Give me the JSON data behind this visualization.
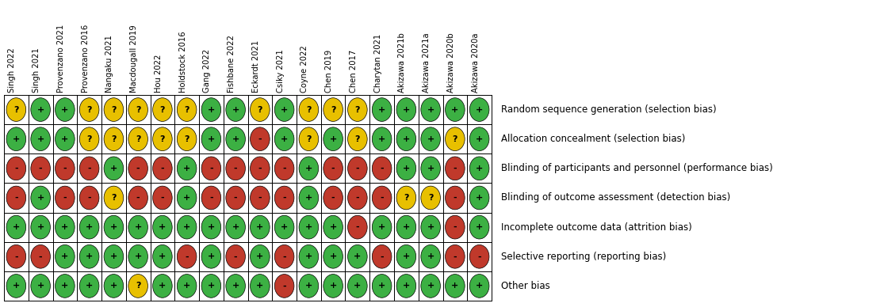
{
  "studies": [
    "Singh 2022",
    "Singh 2021",
    "Provenzano 2021",
    "Provenzano 2016",
    "Nangaku 2021",
    "Macdougall 2019",
    "Hou 2022",
    "Holdstock 2016",
    "Gang 2022",
    "Fishbane 2022",
    "Eckardt 2021",
    "Csiky 2021",
    "Coyne 2022",
    "Chen 2019",
    "Chen 2017",
    "Charytan 2021",
    "Akizawa 2021b",
    "Akizawa 2021a",
    "Akizawa 2020b",
    "Akizawa 2020a"
  ],
  "criteria": [
    "Random sequence generation (selection bias)",
    "Allocation concealment (selection bias)",
    "Blinding of participants and personnel (performance bias)",
    "Blinding of outcome assessment (detection bias)",
    "Incomplete outcome data (attrition bias)",
    "Selective reporting (reporting bias)",
    "Other bias"
  ],
  "ratings": [
    [
      "Y",
      "G",
      "G",
      "Y",
      "Y",
      "Y",
      "Y",
      "Y",
      "G",
      "G",
      "Y",
      "G",
      "Y",
      "Y",
      "Y",
      "G",
      "G",
      "G",
      "G",
      "G"
    ],
    [
      "G",
      "G",
      "G",
      "Y",
      "Y",
      "Y",
      "Y",
      "Y",
      "G",
      "G",
      "R",
      "G",
      "Y",
      "G",
      "Y",
      "G",
      "G",
      "G",
      "Y",
      "G"
    ],
    [
      "R",
      "R",
      "R",
      "R",
      "G",
      "R",
      "R",
      "G",
      "R",
      "R",
      "R",
      "R",
      "G",
      "R",
      "R",
      "R",
      "G",
      "G",
      "R",
      "G"
    ],
    [
      "R",
      "G",
      "R",
      "R",
      "Y",
      "R",
      "R",
      "G",
      "R",
      "R",
      "R",
      "R",
      "G",
      "R",
      "R",
      "R",
      "Y",
      "Y",
      "R",
      "G"
    ],
    [
      "G",
      "G",
      "G",
      "G",
      "G",
      "G",
      "G",
      "G",
      "G",
      "G",
      "G",
      "G",
      "G",
      "G",
      "R",
      "G",
      "G",
      "G",
      "R",
      "G"
    ],
    [
      "R",
      "R",
      "G",
      "G",
      "G",
      "G",
      "G",
      "R",
      "G",
      "R",
      "G",
      "R",
      "G",
      "G",
      "G",
      "R",
      "G",
      "G",
      "R",
      "R"
    ],
    [
      "G",
      "G",
      "G",
      "G",
      "G",
      "Y",
      "G",
      "G",
      "G",
      "G",
      "G",
      "R",
      "G",
      "G",
      "G",
      "G",
      "G",
      "G",
      "G",
      "G"
    ]
  ],
  "color_map": {
    "G": "#3cb043",
    "Y": "#e8c000",
    "R": "#c0392b"
  },
  "symbol_map": {
    "G": "+",
    "Y": "?",
    "R": "-"
  },
  "row_label_fontsize": 8.5,
  "col_label_fontsize": 7.2,
  "symbol_fontsize": 8,
  "background_color": "#ffffff",
  "grid_color": "#000000",
  "text_color": "#000000"
}
